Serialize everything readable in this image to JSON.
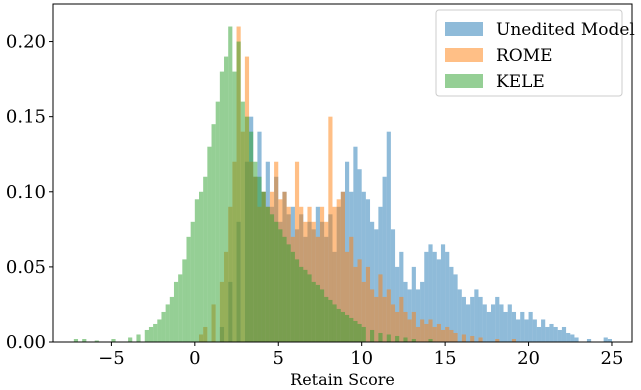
{
  "chart_data": {
    "type": "bar",
    "title": "",
    "xlabel": "Retain Score",
    "ylabel": "",
    "xlim": [
      -8.5,
      26.2
    ],
    "ylim": [
      0,
      0.225
    ],
    "xticks": [
      -5,
      0,
      5,
      10,
      15,
      20,
      25
    ],
    "yticks": [
      0.0,
      0.05,
      0.1,
      0.15,
      0.2
    ],
    "xtick_labels": [
      "−5",
      "0",
      "5",
      "10",
      "15",
      "20",
      "25"
    ],
    "ytick_labels": [
      "0.00",
      "0.05",
      "0.10",
      "0.15",
      "0.20"
    ],
    "grid": false,
    "legend_position": "top-right",
    "bin_width": 0.25,
    "series": [
      {
        "name": "Unedited Model",
        "color": "#1f77b4",
        "opacity": 0.5,
        "bins": [
          [
            1.5,
            0.01
          ],
          [
            2.0,
            0.04
          ],
          [
            2.5,
            0.08
          ],
          [
            3.0,
            0.12
          ],
          [
            3.25,
            0.15
          ],
          [
            3.5,
            0.11
          ],
          [
            3.75,
            0.14
          ],
          [
            4.0,
            0.1
          ],
          [
            4.25,
            0.12
          ],
          [
            4.5,
            0.09
          ],
          [
            4.75,
            0.11
          ],
          [
            5.0,
            0.08
          ],
          [
            5.25,
            0.1
          ],
          [
            5.5,
            0.085
          ],
          [
            5.75,
            0.09
          ],
          [
            6.0,
            0.075
          ],
          [
            6.25,
            0.085
          ],
          [
            6.5,
            0.07
          ],
          [
            6.75,
            0.08
          ],
          [
            7.0,
            0.075
          ],
          [
            7.25,
            0.09
          ],
          [
            7.5,
            0.08
          ],
          [
            7.75,
            0.07
          ],
          [
            8.0,
            0.085
          ],
          [
            8.25,
            0.06
          ],
          [
            8.5,
            0.09
          ],
          [
            8.75,
            0.1
          ],
          [
            9.0,
            0.12
          ],
          [
            9.25,
            0.1
          ],
          [
            9.5,
            0.13
          ],
          [
            9.75,
            0.115
          ],
          [
            10.0,
            0.1
          ],
          [
            10.25,
            0.095
          ],
          [
            10.5,
            0.08
          ],
          [
            10.75,
            0.075
          ],
          [
            11.0,
            0.09
          ],
          [
            11.25,
            0.11
          ],
          [
            11.5,
            0.14
          ],
          [
            11.75,
            0.075
          ],
          [
            12.0,
            0.05
          ],
          [
            12.25,
            0.06
          ],
          [
            12.5,
            0.04
          ],
          [
            12.75,
            0.035
          ],
          [
            13.0,
            0.05
          ],
          [
            13.25,
            0.035
          ],
          [
            13.5,
            0.04
          ],
          [
            13.75,
            0.06
          ],
          [
            14.0,
            0.065
          ],
          [
            14.25,
            0.06
          ],
          [
            14.5,
            0.055
          ],
          [
            14.75,
            0.065
          ],
          [
            15.0,
            0.06
          ],
          [
            15.25,
            0.05
          ],
          [
            15.5,
            0.045
          ],
          [
            15.75,
            0.035
          ],
          [
            16.0,
            0.03
          ],
          [
            16.25,
            0.025
          ],
          [
            16.5,
            0.03
          ],
          [
            16.75,
            0.035
          ],
          [
            17.0,
            0.03
          ],
          [
            17.25,
            0.025
          ],
          [
            17.5,
            0.02
          ],
          [
            17.75,
            0.025
          ],
          [
            18.0,
            0.03
          ],
          [
            18.25,
            0.025
          ],
          [
            18.5,
            0.02
          ],
          [
            18.75,
            0.025
          ],
          [
            19.0,
            0.02
          ],
          [
            19.25,
            0.015
          ],
          [
            19.5,
            0.02
          ],
          [
            19.75,
            0.015
          ],
          [
            20.0,
            0.02
          ],
          [
            20.25,
            0.015
          ],
          [
            20.5,
            0.01
          ],
          [
            20.75,
            0.015
          ],
          [
            21.0,
            0.01
          ],
          [
            21.25,
            0.012
          ],
          [
            21.5,
            0.01
          ],
          [
            21.75,
            0.008
          ],
          [
            22.0,
            0.01
          ],
          [
            22.25,
            0.006
          ],
          [
            22.5,
            0.005
          ],
          [
            22.75,
            0.003
          ],
          [
            23.5,
            0.002
          ],
          [
            24.5,
            0.003
          ],
          [
            24.75,
            0.002
          ]
        ]
      },
      {
        "name": "ROME",
        "color": "#ff7f0e",
        "opacity": 0.5,
        "bins": [
          [
            0.25,
            0.005
          ],
          [
            0.5,
            0.01
          ],
          [
            1.0,
            0.025
          ],
          [
            1.5,
            0.04
          ],
          [
            1.75,
            0.06
          ],
          [
            2.0,
            0.09
          ],
          [
            2.25,
            0.12
          ],
          [
            2.5,
            0.21
          ],
          [
            2.75,
            0.14
          ],
          [
            3.0,
            0.19
          ],
          [
            3.25,
            0.12
          ],
          [
            3.5,
            0.11
          ],
          [
            3.75,
            0.09
          ],
          [
            4.0,
            0.1
          ],
          [
            4.25,
            0.09
          ],
          [
            4.5,
            0.1
          ],
          [
            4.75,
            0.12
          ],
          [
            5.0,
            0.095
          ],
          [
            5.25,
            0.1
          ],
          [
            5.5,
            0.09
          ],
          [
            5.75,
            0.07
          ],
          [
            6.0,
            0.12
          ],
          [
            6.25,
            0.09
          ],
          [
            6.5,
            0.08
          ],
          [
            6.75,
            0.09
          ],
          [
            7.0,
            0.08
          ],
          [
            7.25,
            0.07
          ],
          [
            7.5,
            0.09
          ],
          [
            7.75,
            0.08
          ],
          [
            8.0,
            0.15
          ],
          [
            8.25,
            0.09
          ],
          [
            8.5,
            0.095
          ],
          [
            8.75,
            0.1
          ],
          [
            9.0,
            0.06
          ],
          [
            9.25,
            0.07
          ],
          [
            9.5,
            0.05
          ],
          [
            9.75,
            0.055
          ],
          [
            10.0,
            0.04
          ],
          [
            10.25,
            0.05
          ],
          [
            10.5,
            0.035
          ],
          [
            10.75,
            0.03
          ],
          [
            11.0,
            0.045
          ],
          [
            11.25,
            0.03
          ],
          [
            11.5,
            0.035
          ],
          [
            11.75,
            0.025
          ],
          [
            12.0,
            0.02
          ],
          [
            12.25,
            0.03
          ],
          [
            12.5,
            0.02
          ],
          [
            12.75,
            0.015
          ],
          [
            13.0,
            0.02
          ],
          [
            13.25,
            0.01
          ],
          [
            13.5,
            0.015
          ],
          [
            13.75,
            0.012
          ],
          [
            14.0,
            0.015
          ],
          [
            14.25,
            0.01
          ],
          [
            14.5,
            0.012
          ],
          [
            14.75,
            0.008
          ],
          [
            15.0,
            0.01
          ],
          [
            15.25,
            0.008
          ],
          [
            15.5,
            0.006
          ],
          [
            16.0,
            0.005
          ],
          [
            16.5,
            0.004
          ],
          [
            17.0,
            0.003
          ],
          [
            18.0,
            0.002
          ],
          [
            19.0,
            0.002
          ]
        ]
      },
      {
        "name": "KELE",
        "color": "#2ca02c",
        "opacity": 0.5,
        "bins": [
          [
            -7.25,
            0.002
          ],
          [
            -6.75,
            0.002
          ],
          [
            -6.0,
            0.001
          ],
          [
            -5.0,
            0.002
          ],
          [
            -4.0,
            0.003
          ],
          [
            -3.5,
            0.005
          ],
          [
            -3.0,
            0.008
          ],
          [
            -2.75,
            0.01
          ],
          [
            -2.5,
            0.012
          ],
          [
            -2.25,
            0.015
          ],
          [
            -2.0,
            0.02
          ],
          [
            -1.75,
            0.025
          ],
          [
            -1.5,
            0.03
          ],
          [
            -1.25,
            0.04
          ],
          [
            -1.0,
            0.045
          ],
          [
            -0.75,
            0.055
          ],
          [
            -0.5,
            0.07
          ],
          [
            -0.25,
            0.08
          ],
          [
            0.0,
            0.095
          ],
          [
            0.25,
            0.1
          ],
          [
            0.5,
            0.11
          ],
          [
            0.75,
            0.13
          ],
          [
            1.0,
            0.145
          ],
          [
            1.25,
            0.16
          ],
          [
            1.5,
            0.18
          ],
          [
            1.75,
            0.19
          ],
          [
            2.0,
            0.21
          ],
          [
            2.25,
            0.18
          ],
          [
            2.5,
            0.2
          ],
          [
            2.75,
            0.16
          ],
          [
            3.0,
            0.15
          ],
          [
            3.25,
            0.14
          ],
          [
            3.5,
            0.12
          ],
          [
            3.75,
            0.11
          ],
          [
            4.0,
            0.1
          ],
          [
            4.25,
            0.09
          ],
          [
            4.5,
            0.085
          ],
          [
            4.75,
            0.08
          ],
          [
            5.0,
            0.075
          ],
          [
            5.25,
            0.07
          ],
          [
            5.5,
            0.065
          ],
          [
            5.75,
            0.06
          ],
          [
            6.0,
            0.055
          ],
          [
            6.25,
            0.05
          ],
          [
            6.5,
            0.048
          ],
          [
            6.75,
            0.045
          ],
          [
            7.0,
            0.04
          ],
          [
            7.25,
            0.038
          ],
          [
            7.5,
            0.035
          ],
          [
            7.75,
            0.03
          ],
          [
            8.0,
            0.028
          ],
          [
            8.25,
            0.025
          ],
          [
            8.5,
            0.022
          ],
          [
            8.75,
            0.02
          ],
          [
            9.0,
            0.018
          ],
          [
            9.25,
            0.016
          ],
          [
            9.5,
            0.014
          ],
          [
            9.75,
            0.012
          ],
          [
            10.0,
            0.01
          ],
          [
            10.5,
            0.008
          ],
          [
            11.0,
            0.006
          ],
          [
            11.5,
            0.005
          ],
          [
            12.0,
            0.004
          ],
          [
            12.5,
            0.003
          ],
          [
            13.0,
            0.002
          ],
          [
            14.0,
            0.002
          ]
        ]
      }
    ]
  }
}
